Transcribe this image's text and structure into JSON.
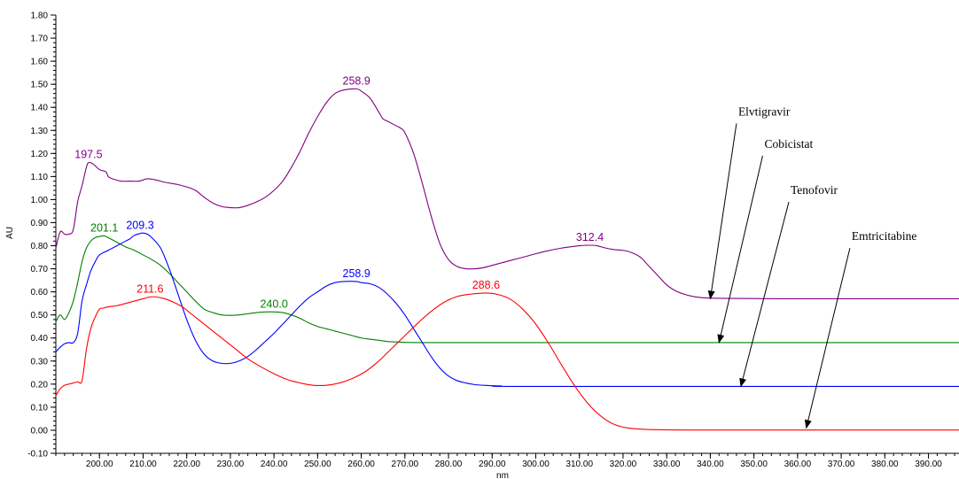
{
  "chart_data": {
    "type": "line",
    "xlabel": "nm",
    "ylabel": "AU",
    "xlim": [
      190,
      397
    ],
    "ylim": [
      -0.1,
      1.8
    ],
    "x_ticks": [
      "200.00",
      "210.00",
      "220.00",
      "230.00",
      "240.00",
      "250.00",
      "260.00",
      "270.00",
      "280.00",
      "290.00",
      "300.00",
      "310.00",
      "320.00",
      "330.00",
      "340.00",
      "350.00",
      "360.00",
      "370.00",
      "380.00",
      "390.00"
    ],
    "y_ticks": [
      "-0.10",
      "0.00",
      "0.10",
      "0.20",
      "0.30",
      "0.40",
      "0.50",
      "0.60",
      "0.70",
      "0.80",
      "0.90",
      "1.00",
      "1.10",
      "1.20",
      "1.30",
      "1.40",
      "1.50",
      "1.60",
      "1.70",
      "1.80"
    ],
    "series": [
      {
        "name": "Elvtigravir",
        "color": "#800080",
        "points": [
          [
            190,
            0.79
          ],
          [
            191,
            0.86
          ],
          [
            192,
            0.85
          ],
          [
            193,
            0.85
          ],
          [
            194,
            0.87
          ],
          [
            195,
            0.99
          ],
          [
            196,
            1.06
          ],
          [
            197,
            1.14
          ],
          [
            197.5,
            1.16
          ],
          [
            198.5,
            1.155
          ],
          [
            200,
            1.13
          ],
          [
            201.5,
            1.12
          ],
          [
            202,
            1.1
          ],
          [
            203,
            1.09
          ],
          [
            205,
            1.08
          ],
          [
            207,
            1.08
          ],
          [
            209,
            1.08
          ],
          [
            211,
            1.09
          ],
          [
            213,
            1.085
          ],
          [
            215,
            1.075
          ],
          [
            218,
            1.065
          ],
          [
            220,
            1.055
          ],
          [
            222,
            1.04
          ],
          [
            224,
            1.01
          ],
          [
            226,
            0.985
          ],
          [
            228,
            0.97
          ],
          [
            230,
            0.965
          ],
          [
            232,
            0.965
          ],
          [
            234,
            0.975
          ],
          [
            236,
            0.99
          ],
          [
            238,
            1.01
          ],
          [
            240,
            1.04
          ],
          [
            242,
            1.08
          ],
          [
            244,
            1.14
          ],
          [
            246,
            1.21
          ],
          [
            248,
            1.29
          ],
          [
            250,
            1.36
          ],
          [
            252,
            1.42
          ],
          [
            254,
            1.46
          ],
          [
            256,
            1.475
          ],
          [
            258.9,
            1.48
          ],
          [
            260,
            1.47
          ],
          [
            262,
            1.44
          ],
          [
            264,
            1.38
          ],
          [
            265,
            1.35
          ],
          [
            266,
            1.34
          ],
          [
            268,
            1.32
          ],
          [
            269,
            1.31
          ],
          [
            270,
            1.29
          ],
          [
            272,
            1.2
          ],
          [
            274,
            1.07
          ],
          [
            276,
            0.93
          ],
          [
            278,
            0.81
          ],
          [
            280,
            0.74
          ],
          [
            282,
            0.71
          ],
          [
            284,
            0.7
          ],
          [
            286,
            0.7
          ],
          [
            288,
            0.705
          ],
          [
            290,
            0.715
          ],
          [
            294,
            0.735
          ],
          [
            298,
            0.755
          ],
          [
            302,
            0.775
          ],
          [
            306,
            0.79
          ],
          [
            310,
            0.8
          ],
          [
            312.4,
            0.802
          ],
          [
            314,
            0.8
          ],
          [
            316,
            0.79
          ],
          [
            318,
            0.783
          ],
          [
            320,
            0.78
          ],
          [
            322,
            0.77
          ],
          [
            324,
            0.75
          ],
          [
            326,
            0.71
          ],
          [
            328,
            0.67
          ],
          [
            330,
            0.63
          ],
          [
            332,
            0.605
          ],
          [
            334,
            0.59
          ],
          [
            336,
            0.58
          ],
          [
            338,
            0.575
          ],
          [
            342,
            0.572
          ],
          [
            350,
            0.571
          ],
          [
            360,
            0.57
          ],
          [
            397,
            0.57
          ]
        ]
      },
      {
        "name": "Cobicistat",
        "color": "#008000",
        "points": [
          [
            190,
            0.47
          ],
          [
            191,
            0.5
          ],
          [
            192,
            0.48
          ],
          [
            193,
            0.51
          ],
          [
            194,
            0.56
          ],
          [
            195,
            0.64
          ],
          [
            196,
            0.73
          ],
          [
            197,
            0.79
          ],
          [
            198,
            0.82
          ],
          [
            199,
            0.835
          ],
          [
            200,
            0.84
          ],
          [
            201.1,
            0.843
          ],
          [
            202,
            0.835
          ],
          [
            204,
            0.815
          ],
          [
            206,
            0.795
          ],
          [
            208,
            0.78
          ],
          [
            210,
            0.76
          ],
          [
            212,
            0.74
          ],
          [
            214,
            0.715
          ],
          [
            216,
            0.68
          ],
          [
            218,
            0.64
          ],
          [
            220,
            0.6
          ],
          [
            222,
            0.56
          ],
          [
            224,
            0.525
          ],
          [
            226,
            0.51
          ],
          [
            228,
            0.5
          ],
          [
            230,
            0.498
          ],
          [
            232,
            0.5
          ],
          [
            234,
            0.505
          ],
          [
            236,
            0.51
          ],
          [
            238,
            0.513
          ],
          [
            240,
            0.513
          ],
          [
            242,
            0.51
          ],
          [
            244,
            0.5
          ],
          [
            246,
            0.485
          ],
          [
            248,
            0.465
          ],
          [
            250,
            0.45
          ],
          [
            252,
            0.44
          ],
          [
            254,
            0.43
          ],
          [
            256,
            0.42
          ],
          [
            258,
            0.41
          ],
          [
            260,
            0.4
          ],
          [
            262,
            0.395
          ],
          [
            264,
            0.39
          ],
          [
            266,
            0.385
          ],
          [
            268,
            0.383
          ],
          [
            270,
            0.381
          ],
          [
            275,
            0.38
          ],
          [
            290,
            0.38
          ],
          [
            397,
            0.38
          ]
        ]
      },
      {
        "name": "Tenofovir",
        "color": "#0000FF",
        "points": [
          [
            190,
            0.34
          ],
          [
            191,
            0.36
          ],
          [
            192,
            0.375
          ],
          [
            193,
            0.38
          ],
          [
            194,
            0.38
          ],
          [
            195,
            0.42
          ],
          [
            196,
            0.56
          ],
          [
            197,
            0.63
          ],
          [
            198,
            0.69
          ],
          [
            199,
            0.73
          ],
          [
            200,
            0.76
          ],
          [
            202,
            0.78
          ],
          [
            204,
            0.8
          ],
          [
            206,
            0.82
          ],
          [
            207,
            0.83
          ],
          [
            208,
            0.845
          ],
          [
            209.3,
            0.853
          ],
          [
            210,
            0.855
          ],
          [
            211,
            0.85
          ],
          [
            212,
            0.835
          ],
          [
            214,
            0.79
          ],
          [
            216,
            0.7
          ],
          [
            218,
            0.59
          ],
          [
            220,
            0.48
          ],
          [
            222,
            0.39
          ],
          [
            224,
            0.33
          ],
          [
            226,
            0.3
          ],
          [
            228,
            0.29
          ],
          [
            230,
            0.29
          ],
          [
            232,
            0.3
          ],
          [
            234,
            0.32
          ],
          [
            236,
            0.35
          ],
          [
            238,
            0.385
          ],
          [
            240,
            0.42
          ],
          [
            242,
            0.46
          ],
          [
            244,
            0.5
          ],
          [
            246,
            0.54
          ],
          [
            248,
            0.575
          ],
          [
            250,
            0.6
          ],
          [
            252,
            0.625
          ],
          [
            254,
            0.64
          ],
          [
            256,
            0.645
          ],
          [
            258.9,
            0.645
          ],
          [
            260,
            0.64
          ],
          [
            262,
            0.635
          ],
          [
            264,
            0.62
          ],
          [
            266,
            0.59
          ],
          [
            268,
            0.55
          ],
          [
            270,
            0.5
          ],
          [
            272,
            0.44
          ],
          [
            274,
            0.38
          ],
          [
            276,
            0.32
          ],
          [
            278,
            0.27
          ],
          [
            280,
            0.235
          ],
          [
            282,
            0.215
          ],
          [
            284,
            0.205
          ],
          [
            286,
            0.198
          ],
          [
            288,
            0.195
          ],
          [
            292,
            0.192
          ],
          [
            300,
            0.19
          ],
          [
            397,
            0.19
          ]
        ]
      },
      {
        "name": "Emtricitabine",
        "color": "#FF0000",
        "points": [
          [
            190,
            0.15
          ],
          [
            191,
            0.18
          ],
          [
            192,
            0.195
          ],
          [
            193,
            0.2
          ],
          [
            194,
            0.205
          ],
          [
            195,
            0.21
          ],
          [
            196,
            0.215
          ],
          [
            197,
            0.35
          ],
          [
            198,
            0.44
          ],
          [
            199,
            0.49
          ],
          [
            200,
            0.525
          ],
          [
            201,
            0.53
          ],
          [
            202,
            0.535
          ],
          [
            204,
            0.54
          ],
          [
            206,
            0.55
          ],
          [
            208,
            0.56
          ],
          [
            210,
            0.57
          ],
          [
            211.6,
            0.578
          ],
          [
            213,
            0.578
          ],
          [
            215,
            0.57
          ],
          [
            217,
            0.555
          ],
          [
            219,
            0.535
          ],
          [
            221,
            0.505
          ],
          [
            223,
            0.475
          ],
          [
            225,
            0.445
          ],
          [
            228,
            0.4
          ],
          [
            231,
            0.355
          ],
          [
            234,
            0.31
          ],
          [
            237,
            0.275
          ],
          [
            240,
            0.245
          ],
          [
            243,
            0.22
          ],
          [
            246,
            0.205
          ],
          [
            249,
            0.195
          ],
          [
            252,
            0.195
          ],
          [
            255,
            0.205
          ],
          [
            258,
            0.225
          ],
          [
            261,
            0.255
          ],
          [
            264,
            0.3
          ],
          [
            267,
            0.355
          ],
          [
            270,
            0.41
          ],
          [
            273,
            0.465
          ],
          [
            276,
            0.515
          ],
          [
            279,
            0.555
          ],
          [
            282,
            0.58
          ],
          [
            285,
            0.59
          ],
          [
            288.6,
            0.595
          ],
          [
            291,
            0.59
          ],
          [
            294,
            0.57
          ],
          [
            297,
            0.525
          ],
          [
            300,
            0.46
          ],
          [
            303,
            0.375
          ],
          [
            306,
            0.28
          ],
          [
            309,
            0.19
          ],
          [
            312,
            0.115
          ],
          [
            315,
            0.06
          ],
          [
            318,
            0.025
          ],
          [
            321,
            0.01
          ],
          [
            325,
            0.004
          ],
          [
            330,
            0.002
          ],
          [
            340,
            0.001
          ],
          [
            397,
            0.001
          ]
        ]
      }
    ],
    "peak_labels": [
      {
        "text": "197.5",
        "x": 197.5,
        "y": 1.16,
        "color": "#800080"
      },
      {
        "text": "258.9",
        "x": 258.9,
        "y": 1.48,
        "color": "#800080"
      },
      {
        "text": "312.4",
        "x": 312.4,
        "y": 0.802,
        "color": "#800080"
      },
      {
        "text": "201.1",
        "x": 201.1,
        "y": 0.843,
        "color": "#008000"
      },
      {
        "text": "240.0",
        "x": 240.0,
        "y": 0.513,
        "color": "#008000"
      },
      {
        "text": "209.3",
        "x": 209.3,
        "y": 0.853,
        "color": "#0000FF"
      },
      {
        "text": "258.9",
        "x": 258.9,
        "y": 0.645,
        "color": "#0000FF"
      },
      {
        "text": "211.6",
        "x": 211.6,
        "y": 0.578,
        "color": "#FF0000"
      },
      {
        "text": "288.6",
        "x": 288.6,
        "y": 0.595,
        "color": "#FF0000"
      }
    ],
    "annotations": [
      {
        "text": "Elvtigravir",
        "from": [
          346,
          1.33
        ],
        "to": [
          340,
          0.57
        ]
      },
      {
        "text": "Cobicistat",
        "from": [
          352,
          1.19
        ],
        "to": [
          342,
          0.38
        ]
      },
      {
        "text": "Tenofovir",
        "from": [
          358,
          0.99
        ],
        "to": [
          347,
          0.19
        ]
      },
      {
        "text": "Emtricitabine",
        "from": [
          372,
          0.79
        ],
        "to": [
          362,
          0.01
        ]
      }
    ]
  }
}
